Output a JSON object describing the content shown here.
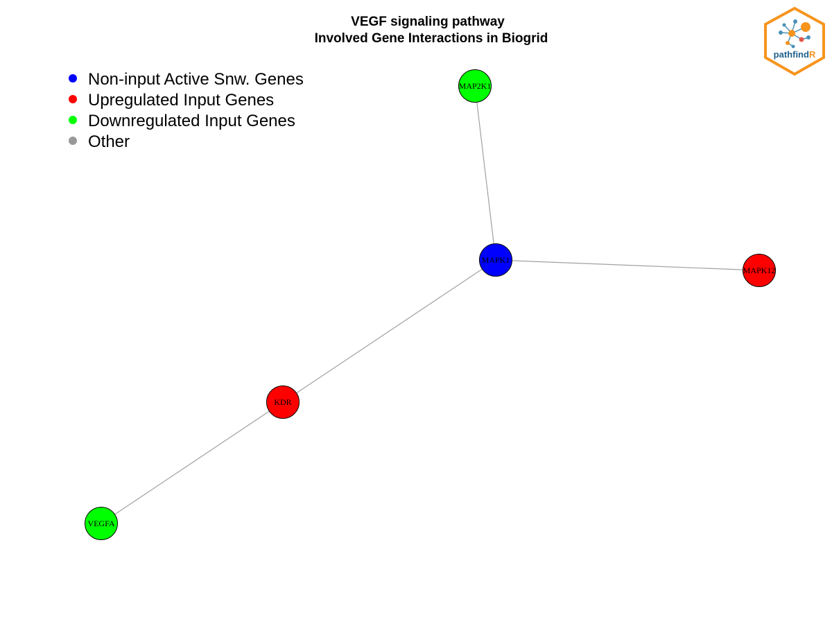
{
  "title": {
    "line1": "VEGF signaling pathway",
    "line2": "Involved Gene Interactions in Biogrid"
  },
  "legend": [
    {
      "label": "Non-input Active Snw. Genes",
      "color": "#0000ff"
    },
    {
      "label": "Upregulated Input Genes",
      "color": "#ff0000"
    },
    {
      "label": "Downregulated Input Genes",
      "color": "#00ff00"
    },
    {
      "label": "Other",
      "color": "#999999"
    }
  ],
  "nodes": [
    {
      "id": "MAP2K1",
      "label": "MAP2K1",
      "category": "Downregulated Input Genes",
      "color": "#00ff00"
    },
    {
      "id": "MAPK1",
      "label": "MAPK1",
      "category": "Non-input Active Snw. Genes",
      "color": "#0000ff"
    },
    {
      "id": "MAPK12",
      "label": "MAPK12",
      "category": "Upregulated Input Genes",
      "color": "#ff0000"
    },
    {
      "id": "KDR",
      "label": "KDR",
      "category": "Upregulated Input Genes",
      "color": "#ff0000"
    },
    {
      "id": "VEGFA",
      "label": "VEGFA",
      "category": "Downregulated Input Genes",
      "color": "#00ff00"
    }
  ],
  "edges": [
    {
      "source": "MAP2K1",
      "target": "MAPK1"
    },
    {
      "source": "MAPK1",
      "target": "MAPK12"
    },
    {
      "source": "MAPK1",
      "target": "KDR"
    },
    {
      "source": "KDR",
      "target": "VEGFA"
    }
  ],
  "edge_color": "#a0a0a0",
  "logo": {
    "text_main": "pathfind",
    "text_accent": "R",
    "main_color": "#1f5f8b",
    "accent_color": "#f7941d",
    "border_color": "#f7941d"
  }
}
